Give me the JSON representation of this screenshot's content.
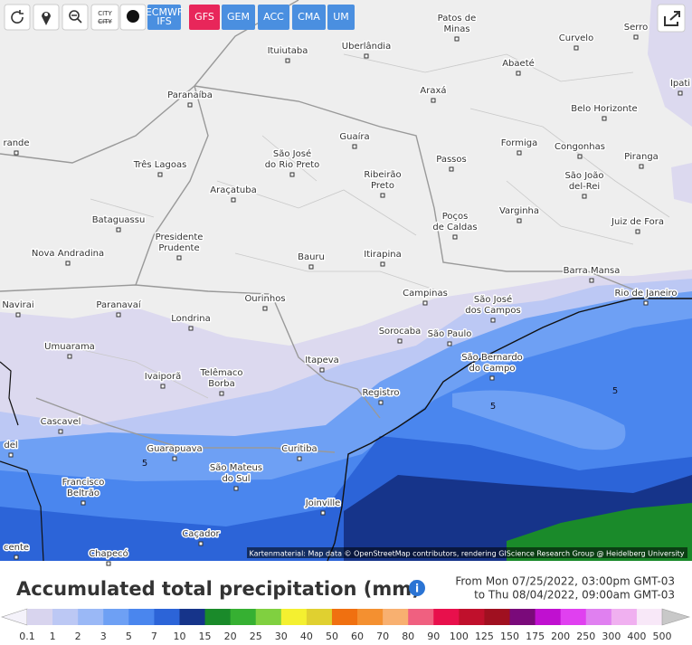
{
  "toolbar": {
    "city_icon": "CITY",
    "models": [
      {
        "lines": [
          "ECMWF",
          "IFS"
        ]
      },
      {
        "lines": [
          "GFS"
        ]
      },
      {
        "lines": [
          "GEM"
        ]
      },
      {
        "lines": [
          "ACC"
        ]
      },
      {
        "lines": [
          "CMA"
        ]
      },
      {
        "lines": [
          "UM"
        ]
      }
    ],
    "active_model": "GFS"
  },
  "map": {
    "cities": [
      {
        "lines": [
          "Patos de",
          "Minas"
        ]
      },
      {
        "lines": [
          "Curvelo"
        ]
      },
      {
        "lines": [
          "Serro"
        ]
      },
      {
        "lines": [
          "Ituiutaba"
        ]
      },
      {
        "lines": [
          "Uberlândia"
        ]
      },
      {
        "lines": [
          "Abaeté"
        ]
      },
      {
        "lines": [
          "Ipati"
        ]
      },
      {
        "lines": [
          "Paranaíba"
        ]
      },
      {
        "lines": [
          "Araxá"
        ]
      },
      {
        "lines": [
          "Belo Horizonte"
        ]
      },
      {
        "lines": [
          "Guaíra"
        ]
      },
      {
        "lines": [
          "Formiga"
        ]
      },
      {
        "lines": [
          "Congonhas"
        ]
      },
      {
        "lines": [
          "rande"
        ]
      },
      {
        "lines": [
          "São José",
          "do Rio Preto"
        ]
      },
      {
        "lines": [
          "Três Lagoas"
        ]
      },
      {
        "lines": [
          "Passos"
        ]
      },
      {
        "lines": [
          "Piranga"
        ]
      },
      {
        "lines": [
          "Ribeirão",
          "Preto"
        ]
      },
      {
        "lines": [
          "São João",
          "del-Rei"
        ]
      },
      {
        "lines": [
          "Araçatuba"
        ]
      },
      {
        "lines": [
          "Varginha"
        ]
      },
      {
        "lines": [
          "Bataguassu"
        ]
      },
      {
        "lines": [
          "Poços",
          "de Caldas"
        ]
      },
      {
        "lines": [
          "Juiz de Fora"
        ]
      },
      {
        "lines": [
          "Presidente",
          "Prudente"
        ]
      },
      {
        "lines": [
          "Nova Andradina"
        ]
      },
      {
        "lines": [
          "Itirapina"
        ]
      },
      {
        "lines": [
          "Bauru"
        ]
      },
      {
        "lines": [
          "Barra Mansa"
        ]
      },
      {
        "lines": [
          "Campinas"
        ]
      },
      {
        "lines": [
          "São José",
          "dos Campos"
        ]
      },
      {
        "lines": [
          "Rio de Janeiro"
        ]
      },
      {
        "lines": [
          "Ourinhos"
        ]
      },
      {
        "lines": [
          "Navirai"
        ]
      },
      {
        "lines": [
          "Paranavaí"
        ]
      },
      {
        "lines": [
          "Londrina"
        ]
      },
      {
        "lines": [
          "Sorocaba"
        ]
      },
      {
        "lines": [
          "São Paulo"
        ]
      },
      {
        "lines": [
          "Umuarama"
        ]
      },
      {
        "lines": [
          "São Bernardo",
          "do Campo"
        ]
      },
      {
        "lines": [
          "Itapeva"
        ]
      },
      {
        "lines": [
          "Ivaiporã"
        ]
      },
      {
        "lines": [
          "Telêmaco",
          "Borba"
        ]
      },
      {
        "lines": [
          "Registro"
        ]
      },
      {
        "lines": [
          "Cascavel"
        ]
      },
      {
        "lines": [
          "del"
        ]
      },
      {
        "lines": [
          "Guarapuava"
        ]
      },
      {
        "lines": [
          "Curitiba"
        ]
      },
      {
        "lines": [
          "São Mateus",
          "do Sul"
        ]
      },
      {
        "lines": [
          "Francisco",
          "Beltrão"
        ]
      },
      {
        "lines": [
          "Joinville"
        ]
      },
      {
        "lines": [
          "Caçador"
        ]
      },
      {
        "lines": [
          "cente"
        ]
      },
      {
        "lines": [
          "Chapecó"
        ]
      }
    ],
    "contour_labels": [
      "5",
      "5",
      "5"
    ],
    "attribution": "Kartenmaterial: Map data © OpenStreetMap contributors, rendering GIScience Research Group @ Heidelberg University"
  },
  "footer": {
    "title": "Accumulated total precipitation (mm)",
    "from": "From Mon 07/25/2022, 03:00pm GMT-03",
    "to": "to Thu 08/04/2022, 09:00am GMT-03"
  },
  "legend": {
    "labels": [
      0.1,
      1,
      2,
      3,
      5,
      7,
      10,
      15,
      20,
      25,
      30,
      40,
      50,
      60,
      70,
      80,
      90,
      100,
      125,
      150,
      175,
      200,
      250,
      300,
      400,
      500
    ],
    "colors": [
      "#d8d4ee",
      "#bcc8f4",
      "#9ab8f6",
      "#6ea0f4",
      "#4a86ee",
      "#2c64d8",
      "#16348a",
      "#1a8a2a",
      "#36b032",
      "#80d040",
      "#f4f030",
      "#e0d030",
      "#f07010",
      "#f49030",
      "#f8b070",
      "#f06080",
      "#e8104c",
      "#c0102c",
      "#a01020",
      "#7a0a7a",
      "#c010d0",
      "#e040f0",
      "#e080f0",
      "#f0b0f0",
      "#f8e8f8"
    ]
  }
}
